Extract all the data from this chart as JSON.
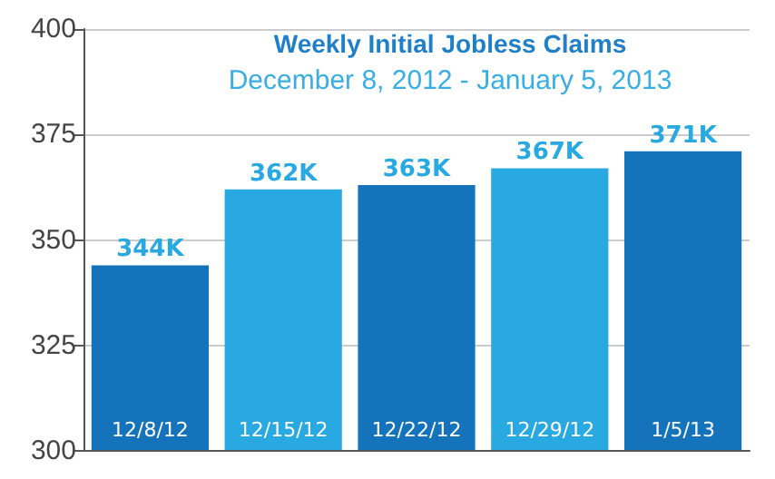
{
  "chart_data": {
    "type": "bar",
    "title": "Weekly Initial Jobless Claims",
    "subtitle": "December 8, 2012 - January 5, 2013",
    "categories": [
      "12/8/12",
      "12/15/12",
      "12/22/12",
      "12/29/12",
      "1/5/13"
    ],
    "values": [
      344,
      362,
      363,
      367,
      371
    ],
    "colors": [
      "#1573bb",
      "#29a9e1",
      "#1573bb",
      "#29a9e1",
      "#1573bb"
    ],
    "value_labels": [
      "344K",
      "362K",
      "363K",
      "367K",
      "371K"
    ],
    "ylim": [
      300,
      400
    ],
    "yticks": [
      300,
      325,
      350,
      375,
      400
    ],
    "grid": "y"
  }
}
